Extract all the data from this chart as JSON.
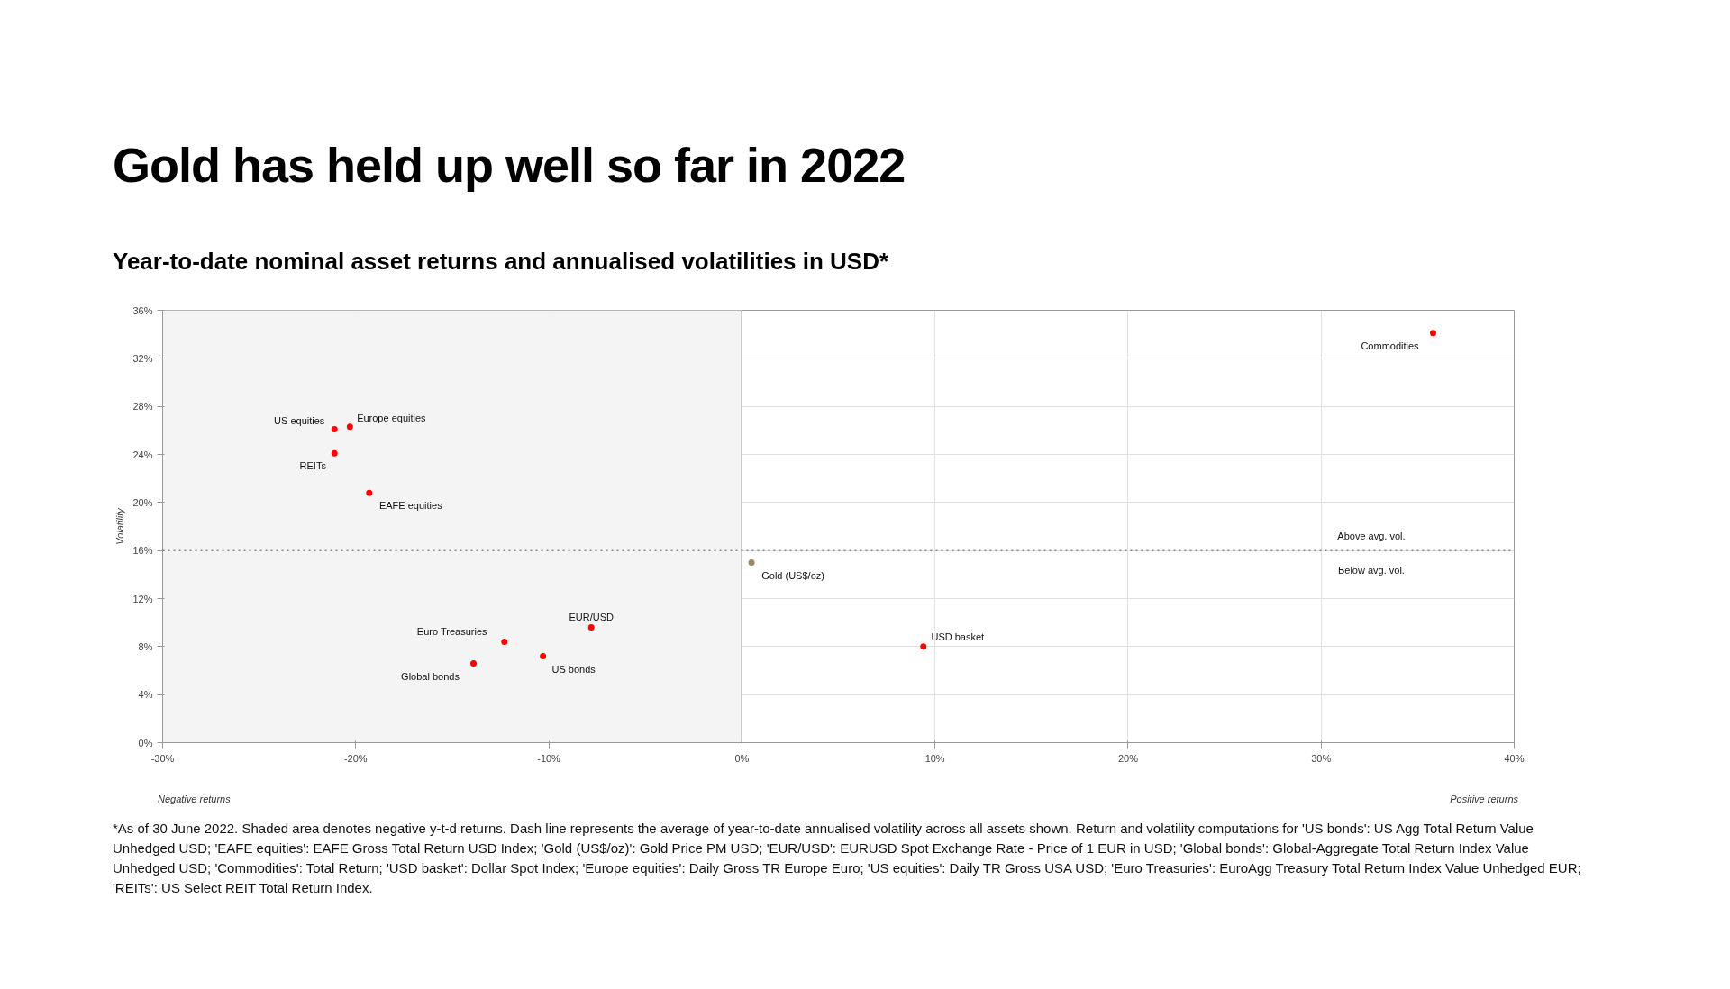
{
  "chart_data": {
    "type": "scatter",
    "title": "Gold has held up well so far in 2022",
    "subtitle": "Year-to-date nominal asset returns and annualised volatilities in USD*",
    "ylabel": "Volatility",
    "x": [
      -21.1,
      -20.3,
      -21.1,
      -19.3,
      0.5,
      -7.8,
      -12.3,
      -10.3,
      -13.9,
      9.4,
      35.8
    ],
    "values": [
      26.1,
      26.3,
      24.1,
      20.8,
      15.0,
      9.6,
      8.4,
      7.2,
      6.6,
      8.0,
      34.1
    ],
    "colors": [
      "#ff0000",
      "#ff0000",
      "#ff0000",
      "#ff0000",
      "#9c8a5a",
      "#ff0000",
      "#ff0000",
      "#ff0000",
      "#ff0000",
      "#ff0000",
      "#ff0000"
    ],
    "marker": "circle",
    "xlim": [
      -30,
      40
    ],
    "ylim": [
      0,
      36
    ],
    "xticks": [
      {
        "value": -30,
        "label": "-30%"
      },
      {
        "value": -20,
        "label": "-20%"
      },
      {
        "value": -10,
        "label": "-10%"
      },
      {
        "value": 0,
        "label": "0%"
      },
      {
        "value": 10,
        "label": "10%"
      },
      {
        "value": 20,
        "label": "20%"
      },
      {
        "value": 30,
        "label": "30%"
      },
      {
        "value": 40,
        "label": "40%"
      }
    ],
    "yticks": [
      {
        "value": 0,
        "label": "0%"
      },
      {
        "value": 4,
        "label": "4%"
      },
      {
        "value": 8,
        "label": "8%"
      },
      {
        "value": 12,
        "label": "12%"
      },
      {
        "value": 16,
        "label": "16%"
      },
      {
        "value": 20,
        "label": "20%"
      },
      {
        "value": 24,
        "label": "24%"
      },
      {
        "value": 28,
        "label": "28%"
      },
      {
        "value": 32,
        "label": "32%"
      },
      {
        "value": 36,
        "label": "36%"
      }
    ],
    "grid": true,
    "ref_lines": [
      {
        "axis": "x",
        "value": 0,
        "color": "#000000",
        "line_style": "solid"
      },
      {
        "axis": "y",
        "value": 16,
        "color": "#555555",
        "line_style": "dotted"
      }
    ],
    "bands": [
      {
        "axis": "x",
        "from": -30,
        "to": 0,
        "color": "#f4f4f4"
      }
    ],
    "annotations": [
      {
        "text": "US equities",
        "x": -21.1,
        "y": 26.1
      },
      {
        "text": "Europe equities",
        "x": -20.3,
        "y": 26.3
      },
      {
        "text": "REITs",
        "x": -21.1,
        "y": 24.1
      },
      {
        "text": "EAFE equities",
        "x": -19.3,
        "y": 20.8
      },
      {
        "text": "Gold (US$/oz)",
        "x": 0.5,
        "y": 15.0
      },
      {
        "text": "EUR/USD",
        "x": -7.8,
        "y": 9.6
      },
      {
        "text": "Euro Treasuries",
        "x": -12.3,
        "y": 8.4
      },
      {
        "text": "US bonds",
        "x": -10.3,
        "y": 7.2
      },
      {
        "text": "Global bonds",
        "x": -13.9,
        "y": 6.6
      },
      {
        "text": "USD basket",
        "x": 9.4,
        "y": 8.0
      },
      {
        "text": "Commodities",
        "x": 35.8,
        "y": 34.1
      },
      {
        "text": "Above avg. vol.",
        "x": 32.6,
        "y": 16
      },
      {
        "text": "Below avg. vol.",
        "x": 32.6,
        "y": 16
      },
      "Negative returns",
      "Positive returns",
      "*As of 30 June 2022. Shaded area denotes negative y-t-d returns. Dash line represents the average of year-to-date annualised volatility across all assets shown. Return and volatility computations for 'US bonds': US Agg Total Return Value Unhedged USD; 'EAFE equities': EAFE Gross Total Return USD Index; 'Gold (US$/oz)': Gold Price PM USD; 'EUR/USD': EURUSD Spot Exchange Rate - Price of 1 EUR in USD; 'Global bonds': Global-Aggregate Total Return Index Value Unhedged USD; 'Commodities': Total Return; 'USD basket': Dollar Spot Index; 'Europe equities': Daily Gross TR Europe Euro; 'US equities': Daily TR Gross USA USD; 'Euro Treasuries': EuroAgg Treasury Total Return Index Value Unhedged EUR; 'REITs': US Select REIT Total Return Index."
    ]
  }
}
